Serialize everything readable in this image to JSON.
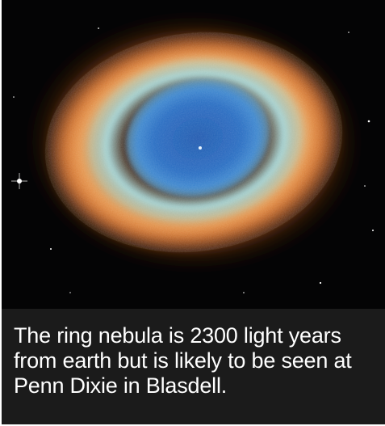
{
  "image": {
    "subject": "ring-nebula-photo",
    "colors": {
      "space": "#040405",
      "outer_glow": "#d96a1e",
      "ring_orange": "#f29c4a",
      "ring_teal": "#7fc9d4",
      "core_blue": "#1f5fb5",
      "caption_bg": "#1b1b1b",
      "caption_text": "#ffffff"
    }
  },
  "caption": {
    "text": "The ring nebula is 2300 light years from earth but is likely to be seen at Penn Dixie in Blasdell."
  }
}
